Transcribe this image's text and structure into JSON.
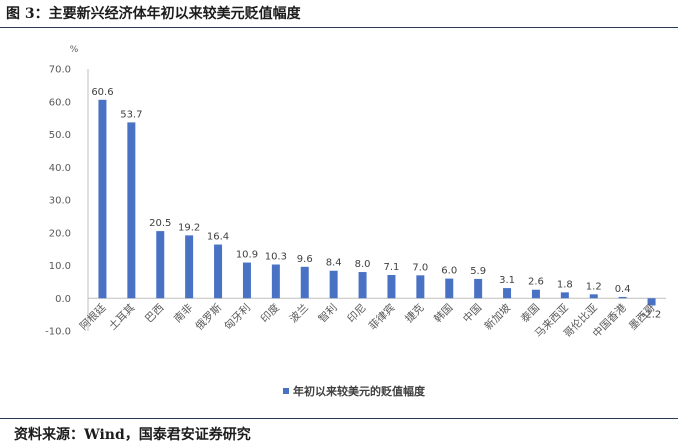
{
  "figure": {
    "title": "图 3：主要新兴经济体年初以来较美元贬值幅度",
    "source": "资料来源：Wind，国泰君安证券研究"
  },
  "chart_data": {
    "type": "bar",
    "unit": "%",
    "categories": [
      "阿根廷",
      "土耳其",
      "巴西",
      "南非",
      "俄罗斯",
      "匈牙利",
      "印度",
      "波兰",
      "智利",
      "印尼",
      "菲律宾",
      "捷克",
      "韩国",
      "中国",
      "新加坡",
      "泰国",
      "马来西亚",
      "哥伦比亚",
      "中国香港",
      "墨西哥"
    ],
    "series": [
      {
        "name": "年初以来较美元的贬值幅度",
        "color": "#4a72c4",
        "values": [
          60.6,
          53.7,
          20.5,
          19.2,
          16.4,
          10.9,
          10.3,
          9.6,
          8.4,
          8.0,
          7.1,
          7.0,
          6.0,
          5.9,
          3.1,
          2.6,
          1.8,
          1.2,
          0.4,
          -2.2
        ],
        "labels": [
          "60.6",
          "53.7",
          "20.5",
          "19.2",
          "16.4",
          "10.9",
          "10.3",
          "9.6",
          "8.4",
          "8.0",
          "7.1",
          "7.0",
          "6.0",
          "5.9",
          "3.1",
          "2.6",
          "1.8",
          "1.2",
          "0.4",
          "-2.2"
        ]
      }
    ],
    "y_ticks": [
      "70.0",
      "60.0",
      "50.0",
      "40.0",
      "30.0",
      "20.0",
      "10.0",
      "0.0",
      "-10.0"
    ],
    "ylim": [
      -10,
      70
    ],
    "grid": false,
    "legend_position": "bottom"
  }
}
